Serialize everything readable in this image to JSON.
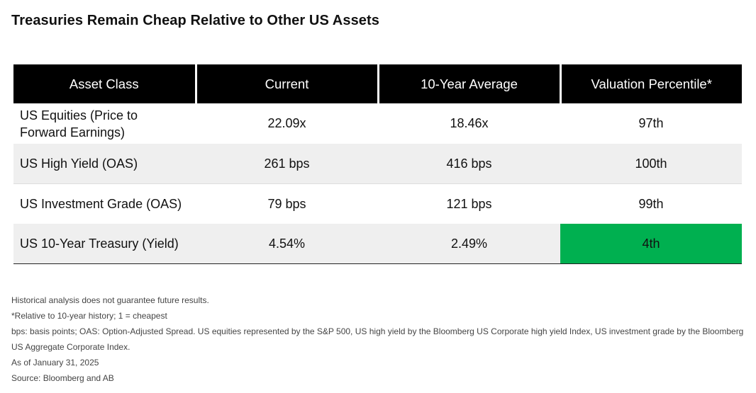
{
  "title": "Treasuries Remain Cheap Relative to Other US Assets",
  "chart_data": {
    "type": "table",
    "columns": [
      "Asset Class",
      "Current",
      "10-Year Average",
      "Valuation Percentile*"
    ],
    "rows": [
      [
        "US Equities (Price to Forward Earnings)",
        "22.09x",
        "18.46x",
        "97th"
      ],
      [
        "US High Yield (OAS)",
        "261 bps",
        "416 bps",
        "100th"
      ],
      [
        "US Investment Grade (OAS)",
        "79 bps",
        "121 bps",
        "99th"
      ],
      [
        "US 10-Year Treasury (Yield)",
        "4.54%",
        "2.49%",
        "4th"
      ]
    ],
    "highlight": {
      "row": 3,
      "column": 3,
      "color": "#00b050"
    },
    "header_color": "#000000",
    "alternate_row_color": "#efefef"
  },
  "notes": [
    "Historical analysis does not guarantee future results.",
    "*Relative to 10-year history; 1 = cheapest",
    "bps: basis points; OAS: Option-Adjusted Spread. US equities represented by the S&P 500, US high yield by the Bloomberg US Corporate high yield Index, US investment grade by the Bloomberg US Aggregate Corporate Index.",
    "As of January 31, 2025",
    "Source: Bloomberg and AB"
  ]
}
